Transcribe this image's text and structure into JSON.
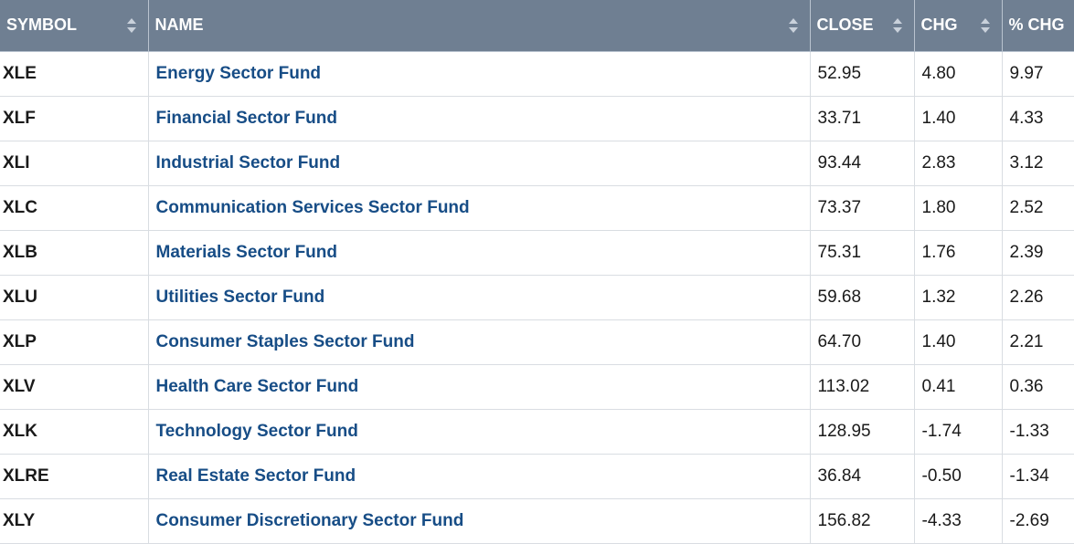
{
  "headers": {
    "symbol": "SYMBOL",
    "name": "NAME",
    "close": "CLOSE",
    "chg": "CHG",
    "pct_chg": "% CHG"
  },
  "colors": {
    "header_bg": "#6f7f92",
    "link": "#174d86"
  },
  "rows": [
    {
      "symbol": "XLE",
      "name": "Energy Sector Fund",
      "close": "52.95",
      "chg": "4.80",
      "pct_chg": "9.97"
    },
    {
      "symbol": "XLF",
      "name": "Financial Sector Fund",
      "close": "33.71",
      "chg": "1.40",
      "pct_chg": "4.33"
    },
    {
      "symbol": "XLI",
      "name": "Industrial Sector Fund",
      "close": "93.44",
      "chg": "2.83",
      "pct_chg": "3.12"
    },
    {
      "symbol": "XLC",
      "name": "Communication Services Sector Fund",
      "close": "73.37",
      "chg": "1.80",
      "pct_chg": "2.52"
    },
    {
      "symbol": "XLB",
      "name": "Materials Sector Fund",
      "close": "75.31",
      "chg": "1.76",
      "pct_chg": "2.39"
    },
    {
      "symbol": "XLU",
      "name": "Utilities Sector Fund",
      "close": "59.68",
      "chg": "1.32",
      "pct_chg": "2.26"
    },
    {
      "symbol": "XLP",
      "name": "Consumer Staples Sector Fund",
      "close": "64.70",
      "chg": "1.40",
      "pct_chg": "2.21"
    },
    {
      "symbol": "XLV",
      "name": "Health Care Sector Fund",
      "close": "113.02",
      "chg": "0.41",
      "pct_chg": "0.36"
    },
    {
      "symbol": "XLK",
      "name": "Technology Sector Fund",
      "close": "128.95",
      "chg": "-1.74",
      "pct_chg": "-1.33"
    },
    {
      "symbol": "XLRE",
      "name": "Real Estate Sector Fund",
      "close": "36.84",
      "chg": "-0.50",
      "pct_chg": "-1.34"
    },
    {
      "symbol": "XLY",
      "name": "Consumer Discretionary Sector Fund",
      "close": "156.82",
      "chg": "-4.33",
      "pct_chg": "-2.69"
    }
  ]
}
